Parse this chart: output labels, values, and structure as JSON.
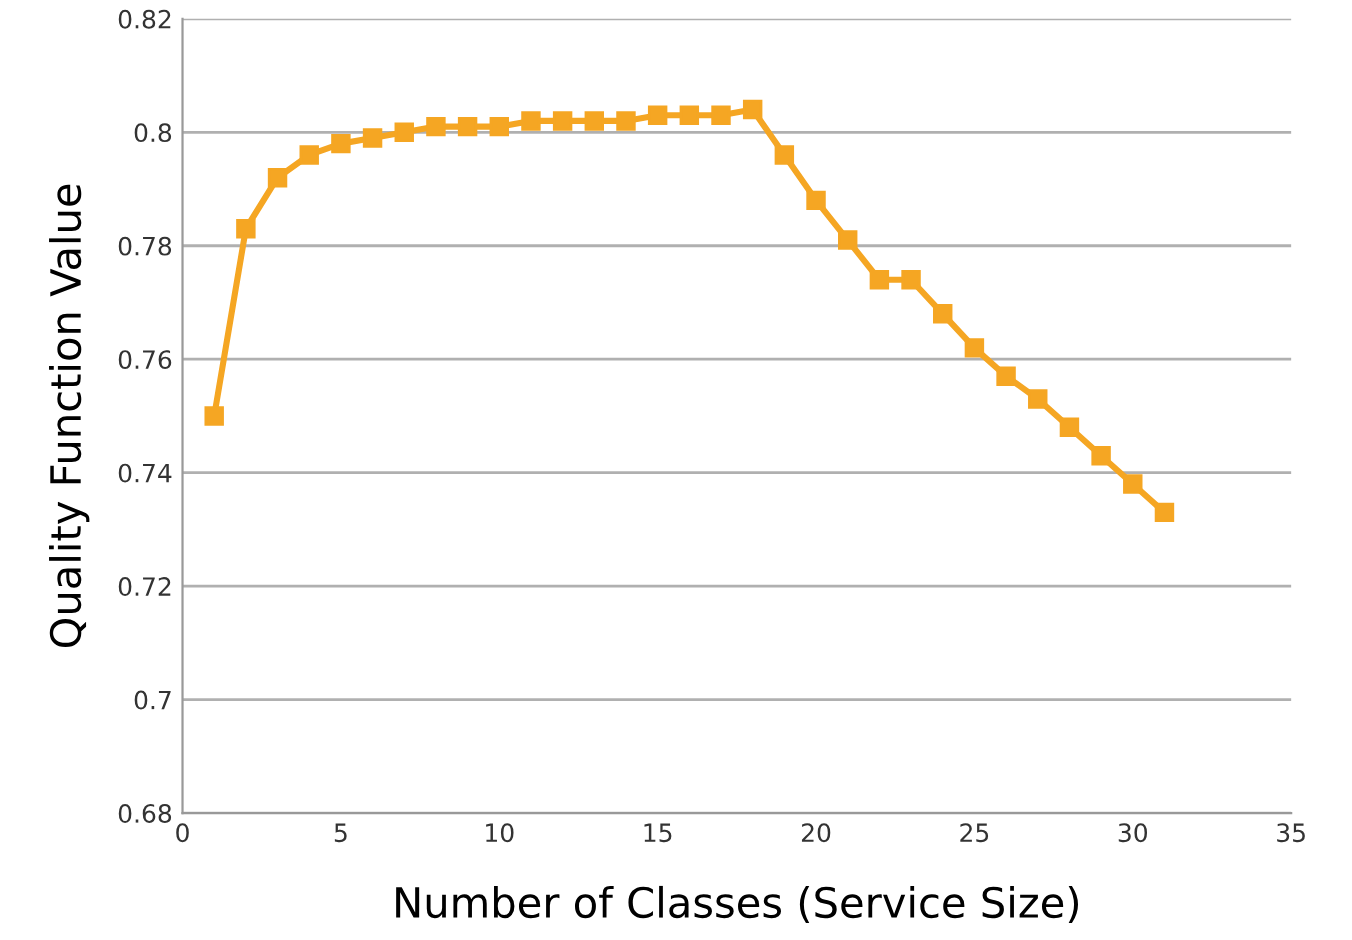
{
  "chart_data": {
    "type": "line",
    "xlabel": "Number of Classes (Service Size)",
    "ylabel": "Quality Function Value",
    "x": [
      1,
      2,
      3,
      4,
      5,
      6,
      7,
      8,
      9,
      10,
      11,
      12,
      13,
      14,
      15,
      16,
      17,
      18,
      19,
      20,
      21,
      22,
      23,
      24,
      25,
      26,
      27,
      28,
      29,
      30,
      31
    ],
    "series": [
      {
        "color": "#f5a623",
        "values": [
          0.75,
          0.783,
          0.792,
          0.796,
          0.798,
          0.799,
          0.8,
          0.801,
          0.801,
          0.801,
          0.802,
          0.802,
          0.802,
          0.802,
          0.803,
          0.803,
          0.803,
          0.804,
          0.796,
          0.788,
          0.781,
          0.774,
          0.774,
          0.768,
          0.762,
          0.757,
          0.753,
          0.748,
          0.743,
          0.738,
          0.733
        ]
      }
    ],
    "xlim": [
      0,
      35
    ],
    "xticks": [
      0,
      5,
      10,
      15,
      20,
      25,
      30,
      35
    ],
    "ylim": [
      0.68,
      0.82
    ],
    "yticks": [
      0.68,
      0.7,
      0.72,
      0.74,
      0.76,
      0.78,
      0.8,
      0.82
    ],
    "grid": "y",
    "marker": "square",
    "line_style": "solid",
    "legend": false
  }
}
